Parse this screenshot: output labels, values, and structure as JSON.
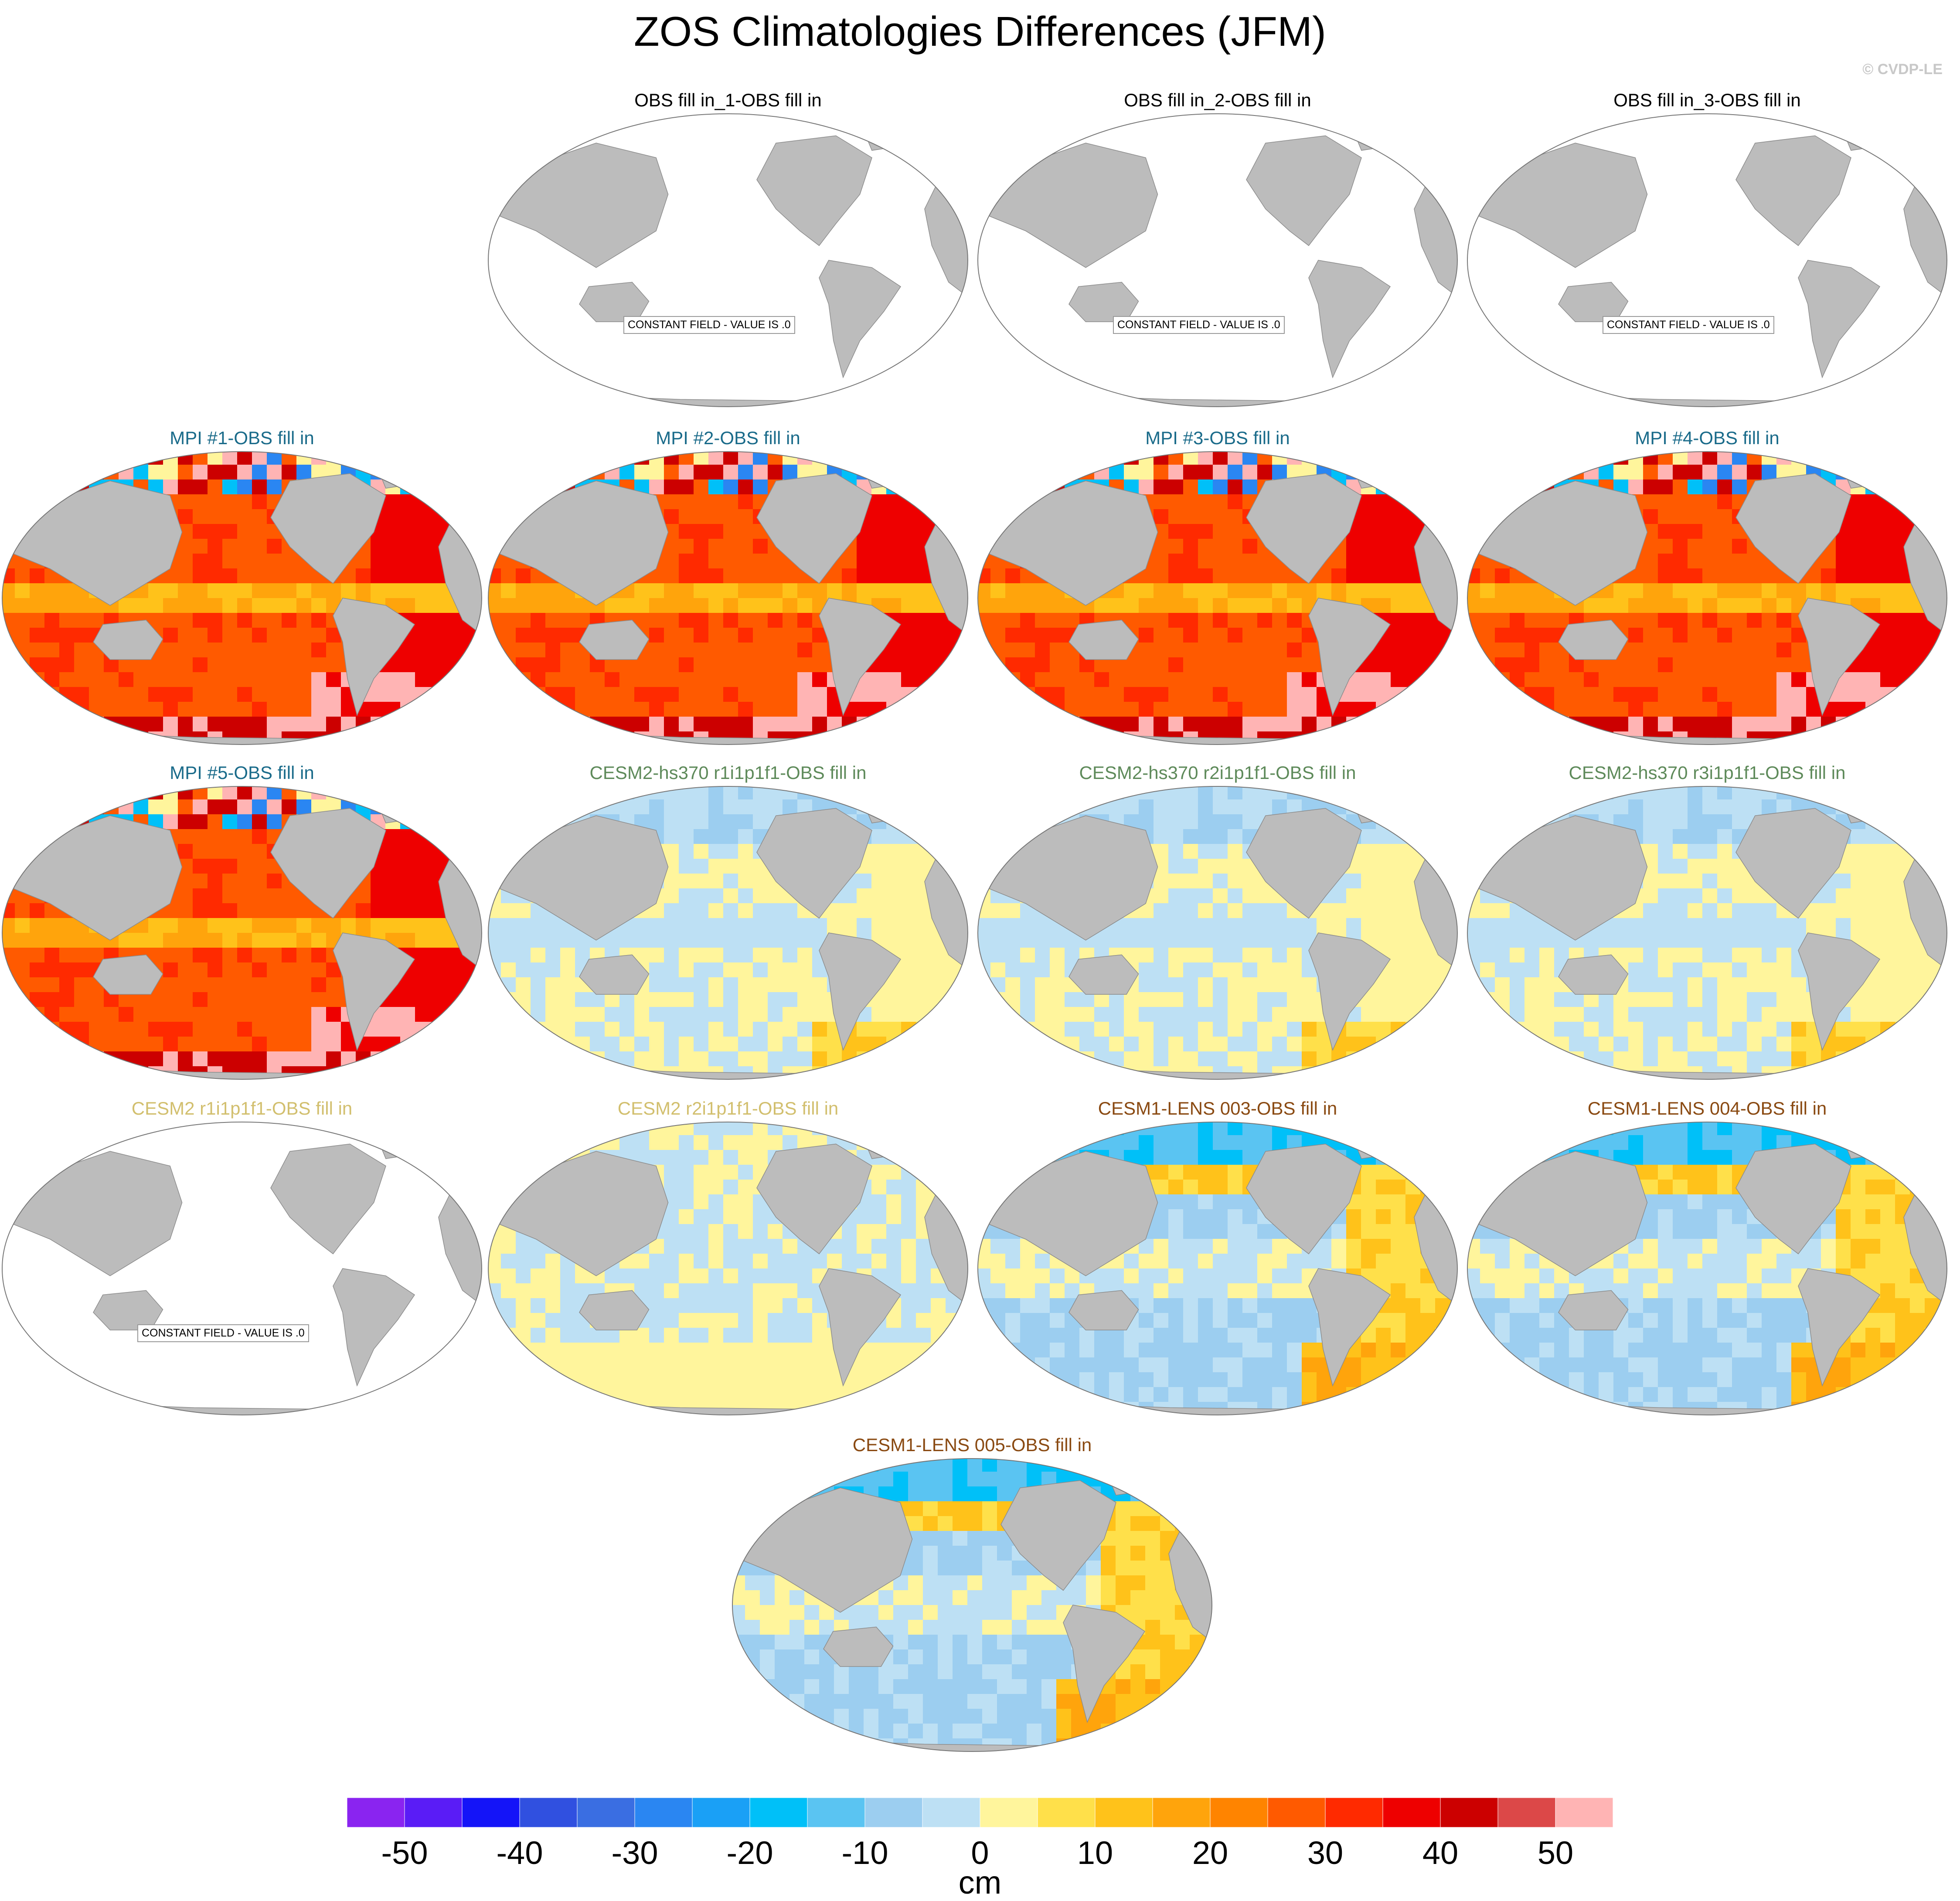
{
  "title": "ZOS Climatologies Differences (JFM)",
  "credit": "© CVDP-LE",
  "constant_label": "CONSTANT FIELD - VALUE IS .0",
  "colors": {
    "land": "#bcbcbc",
    "ocean_blank": "#ffffff",
    "title_obs": "#000000",
    "title_mpi": "#1a6b8a",
    "title_cesm2hs": "#5e8a5a",
    "title_cesm2": "#d2bf6e",
    "title_lens": "#8a4a12"
  },
  "panels": [
    {
      "title": "OBS fill in_1-OBS fill in",
      "scheme": "constant",
      "color_key": "title_obs"
    },
    {
      "title": "OBS fill in_2-OBS fill in",
      "scheme": "constant",
      "color_key": "title_obs"
    },
    {
      "title": "OBS fill in_3-OBS fill in",
      "scheme": "constant",
      "color_key": "title_obs"
    },
    {
      "title": "MPI #1-OBS fill in",
      "scheme": "hot",
      "color_key": "title_mpi"
    },
    {
      "title": "MPI #2-OBS fill in",
      "scheme": "hot",
      "color_key": "title_mpi"
    },
    {
      "title": "MPI #3-OBS fill in",
      "scheme": "hot",
      "color_key": "title_mpi"
    },
    {
      "title": "MPI #4-OBS fill in",
      "scheme": "hot",
      "color_key": "title_mpi"
    },
    {
      "title": "MPI #5-OBS fill in",
      "scheme": "hot",
      "color_key": "title_mpi"
    },
    {
      "title": "CESM2-hs370 r1i1p1f1-OBS fill in",
      "scheme": "mild",
      "color_key": "title_cesm2hs"
    },
    {
      "title": "CESM2-hs370 r2i1p1f1-OBS fill in",
      "scheme": "mild",
      "color_key": "title_cesm2hs"
    },
    {
      "title": "CESM2-hs370 r3i1p1f1-OBS fill in",
      "scheme": "mild",
      "color_key": "title_cesm2hs"
    },
    {
      "title": "CESM2 r1i1p1f1-OBS fill in",
      "scheme": "constant",
      "color_key": "title_cesm2"
    },
    {
      "title": "CESM2 r2i1p1f1-OBS fill in",
      "scheme": "light",
      "color_key": "title_cesm2"
    },
    {
      "title": "CESM1-LENS 003-OBS fill in",
      "scheme": "lens",
      "color_key": "title_lens"
    },
    {
      "title": "CESM1-LENS 004-OBS fill in",
      "scheme": "lens",
      "color_key": "title_lens"
    },
    {
      "title": "CESM1-LENS 005-OBS fill in",
      "scheme": "lens",
      "color_key": "title_lens"
    }
  ],
  "colorbar": {
    "colors": [
      "#8a24f0",
      "#5a1cf6",
      "#1414f8",
      "#3050e0",
      "#3a6ee2",
      "#2a86f2",
      "#1aa0f6",
      "#00c0f8",
      "#5ac4f2",
      "#9ccef0",
      "#bde0f4",
      "#fff59c",
      "#ffe04a",
      "#ffc21a",
      "#ffa40c",
      "#ff8400",
      "#ff5a00",
      "#ff2a00",
      "#ee0000",
      "#cc0000",
      "#dc4848",
      "#ffb4b4"
    ],
    "tick_labels": [
      "-50",
      "-40",
      "-30",
      "-20",
      "-10",
      "0",
      "10",
      "20",
      "30",
      "40",
      "50"
    ],
    "units": "cm"
  },
  "chart_data": {
    "type": "heatmap",
    "title": "ZOS Climatologies Differences (JFM)",
    "units": "cm",
    "color_levels": [
      -55,
      -50,
      -45,
      -40,
      -35,
      -30,
      -25,
      -20,
      -15,
      -10,
      -5,
      0,
      5,
      10,
      15,
      20,
      25,
      30,
      35,
      40,
      45,
      50,
      55
    ],
    "panels": [
      "OBS fill in_1-OBS fill in",
      "OBS fill in_2-OBS fill in",
      "OBS fill in_3-OBS fill in",
      "MPI #1-OBS fill in",
      "MPI #2-OBS fill in",
      "MPI #3-OBS fill in",
      "MPI #4-OBS fill in",
      "MPI #5-OBS fill in",
      "CESM2-hs370 r1i1p1f1-OBS fill in",
      "CESM2-hs370 r2i1p1f1-OBS fill in",
      "CESM2-hs370 r3i1p1f1-OBS fill in",
      "CESM2 r1i1p1f1-OBS fill in",
      "CESM2 r2i1p1f1-OBS fill in",
      "CESM1-LENS 003-OBS fill in",
      "CESM1-LENS 004-OBS fill in",
      "CESM1-LENS 005-OBS fill in"
    ],
    "constant_panels": [
      "OBS fill in_1-OBS fill in",
      "OBS fill in_2-OBS fill in",
      "OBS fill in_3-OBS fill in",
      "CESM2 r1i1p1f1-OBS fill in"
    ]
  }
}
